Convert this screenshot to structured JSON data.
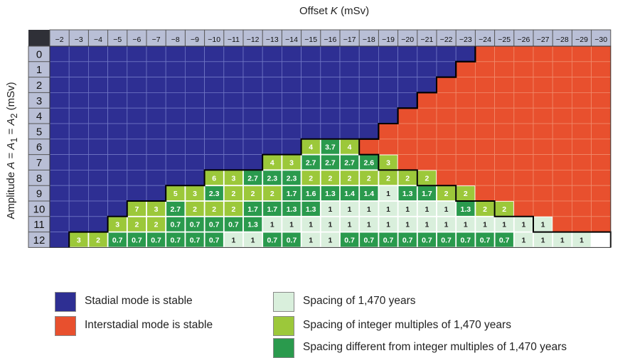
{
  "chart_data": {
    "type": "heatmap",
    "xlabel": "Offset K (mSv)",
    "ylabel": "Amplitude A = A1 = A2 (mSv)",
    "x": [
      -2,
      -3,
      -4,
      -5,
      -6,
      -7,
      -8,
      -9,
      -10,
      -11,
      -12,
      -13,
      -14,
      -15,
      -16,
      -17,
      -18,
      -19,
      -20,
      -21,
      -22,
      -23,
      -24,
      -25,
      -26,
      -27,
      -28,
      -29,
      -30
    ],
    "y": [
      0,
      1,
      2,
      3,
      4,
      5,
      6,
      7,
      8,
      9,
      10,
      11,
      12
    ],
    "stadial_stable_cols_by_row": [
      22,
      21,
      20,
      19,
      18,
      17,
      13,
      11,
      8,
      6,
      4,
      3,
      1
    ],
    "interstadial_start_col_by_row": [
      22,
      21,
      20,
      19,
      18,
      17,
      16,
      17,
      19,
      21,
      23,
      25,
      29
    ],
    "cells": [
      {
        "amp": 6,
        "offsets": [
          -15,
          -16,
          -17
        ],
        "labels": [
          "4",
          "3.7",
          "4"
        ],
        "cats": [
          "int",
          "diff",
          "int"
        ]
      },
      {
        "amp": 7,
        "offsets": [
          -13,
          -14,
          -15,
          -16,
          -17,
          -18,
          -19
        ],
        "labels": [
          "4",
          "3",
          "2.7",
          "2.7",
          "2.7",
          "2.6",
          "3"
        ],
        "cats": [
          "int",
          "int",
          "diff",
          "diff",
          "diff",
          "diff",
          "int"
        ]
      },
      {
        "amp": 8,
        "offsets": [
          -10,
          -11,
          -12,
          -13,
          -14,
          -15,
          -16,
          -17,
          -18,
          -19,
          -20,
          -21
        ],
        "labels": [
          "6",
          "3",
          "2.7",
          "2.3",
          "2.3",
          "2",
          "2",
          "2",
          "2",
          "2",
          "2",
          "2"
        ],
        "cats": [
          "int",
          "int",
          "diff",
          "diff",
          "diff",
          "int",
          "int",
          "int",
          "int",
          "int",
          "int",
          "int"
        ]
      },
      {
        "amp": 9,
        "offsets": [
          -8,
          -9,
          -10,
          -11,
          -12,
          -13,
          -14,
          -15,
          -16,
          -17,
          -18,
          -19,
          -20,
          -21,
          -22,
          -23
        ],
        "labels": [
          "5",
          "3",
          "2.3",
          "2",
          "2",
          "2",
          "1.7",
          "1.6",
          "1.3",
          "1.4",
          "1.4",
          "1",
          "1.3",
          "1.7",
          "2",
          "2"
        ],
        "cats": [
          "int",
          "int",
          "diff",
          "int",
          "int",
          "int",
          "diff",
          "diff",
          "diff",
          "diff",
          "diff",
          "one",
          "diff",
          "diff",
          "int",
          "int"
        ]
      },
      {
        "amp": 10,
        "offsets": [
          -6,
          -7,
          -8,
          -9,
          -10,
          -11,
          -12,
          -13,
          -14,
          -15,
          -16,
          -17,
          -18,
          -19,
          -20,
          -21,
          -22,
          -23,
          -24,
          -25
        ],
        "labels": [
          "7",
          "3",
          "2.7",
          "2",
          "2",
          "2",
          "1.7",
          "1.7",
          "1.3",
          "1.3",
          "1",
          "1",
          "1",
          "1",
          "1",
          "1",
          "1",
          "1.3",
          "2",
          "2"
        ],
        "cats": [
          "int",
          "int",
          "diff",
          "int",
          "int",
          "int",
          "diff",
          "diff",
          "diff",
          "diff",
          "one",
          "one",
          "one",
          "one",
          "one",
          "one",
          "one",
          "diff",
          "int",
          "int"
        ]
      },
      {
        "amp": 11,
        "offsets": [
          -5,
          -6,
          -7,
          -8,
          -9,
          -10,
          -11,
          -12,
          -13,
          -14,
          -15,
          -16,
          -17,
          -18,
          -19,
          -20,
          -21,
          -22,
          -23,
          -24,
          -25,
          -26,
          -27
        ],
        "labels": [
          "3",
          "2",
          "2",
          "0.7",
          "0.7",
          "0.7",
          "0.7",
          "1.3",
          "1",
          "1",
          "1",
          "1",
          "1",
          "1",
          "1",
          "1",
          "1",
          "1",
          "1",
          "1",
          "1",
          "1",
          "1"
        ],
        "cats": [
          "int",
          "int",
          "int",
          "diff",
          "diff",
          "diff",
          "diff",
          "diff",
          "one",
          "one",
          "one",
          "one",
          "one",
          "one",
          "one",
          "one",
          "one",
          "one",
          "one",
          "one",
          "one",
          "one",
          "one"
        ]
      },
      {
        "amp": 12,
        "offsets": [
          -3,
          -4,
          -5,
          -6,
          -7,
          -8,
          -9,
          -10,
          -11,
          -12,
          -13,
          -14,
          -15,
          -16,
          -17,
          -18,
          -19,
          -20,
          -21,
          -22,
          -23,
          -24,
          -25,
          -26,
          -27,
          -28,
          -29
        ],
        "labels": [
          "3",
          "2",
          "0.7",
          "0.7",
          "0.7",
          "0.7",
          "0.7",
          "0.7",
          "1",
          "1",
          "0.7",
          "0.7",
          "1",
          "1",
          "0.7",
          "0.7",
          "0.7",
          "0.7",
          "0.7",
          "0.7",
          "0.7",
          "0.7",
          "0.7",
          "1",
          "1",
          "1",
          "1"
        ],
        "cats": [
          "int",
          "int",
          "diff",
          "diff",
          "diff",
          "diff",
          "diff",
          "diff",
          "one",
          "one",
          "diff",
          "diff",
          "one",
          "one",
          "diff",
          "diff",
          "diff",
          "diff",
          "diff",
          "diff",
          "diff",
          "diff",
          "diff",
          "one",
          "one",
          "one",
          "one"
        ]
      }
    ],
    "legend": [
      {
        "key": "stadial",
        "label": "Stadial mode is stable",
        "color": "#2e2f93"
      },
      {
        "key": "interstadial",
        "label": "Interstadial mode is stable",
        "color": "#e8502e"
      },
      {
        "key": "one",
        "label": "Spacing of 1,470 years",
        "color": "#d9efdc"
      },
      {
        "key": "int",
        "label": "Spacing of integer multiples of 1,470 years",
        "color": "#9cc83a"
      },
      {
        "key": "diff",
        "label": "Spacing different from integer multiples of 1,470 years",
        "color": "#2a9a4d"
      }
    ]
  },
  "axis": {
    "x_title_prefix": "Offset ",
    "x_title_var": "K",
    "x_title_unit": " (mSv)",
    "y_title_prefix": "Amplitude ",
    "y_title_var": "A",
    "y_title_eq1": " = ",
    "y_title_var1": "A",
    "y_title_sub1": "1",
    "y_title_eq2": " = ",
    "y_title_var2": "A",
    "y_title_sub2": "2",
    "y_title_unit": " (mSv)"
  },
  "colors": {
    "header_bg": "#b9bfd6",
    "corner_bg": "#2f3037",
    "grid_line_blue": "#6f76c4",
    "grid_line_red": "#f08a6a",
    "boundary": "#000000"
  }
}
